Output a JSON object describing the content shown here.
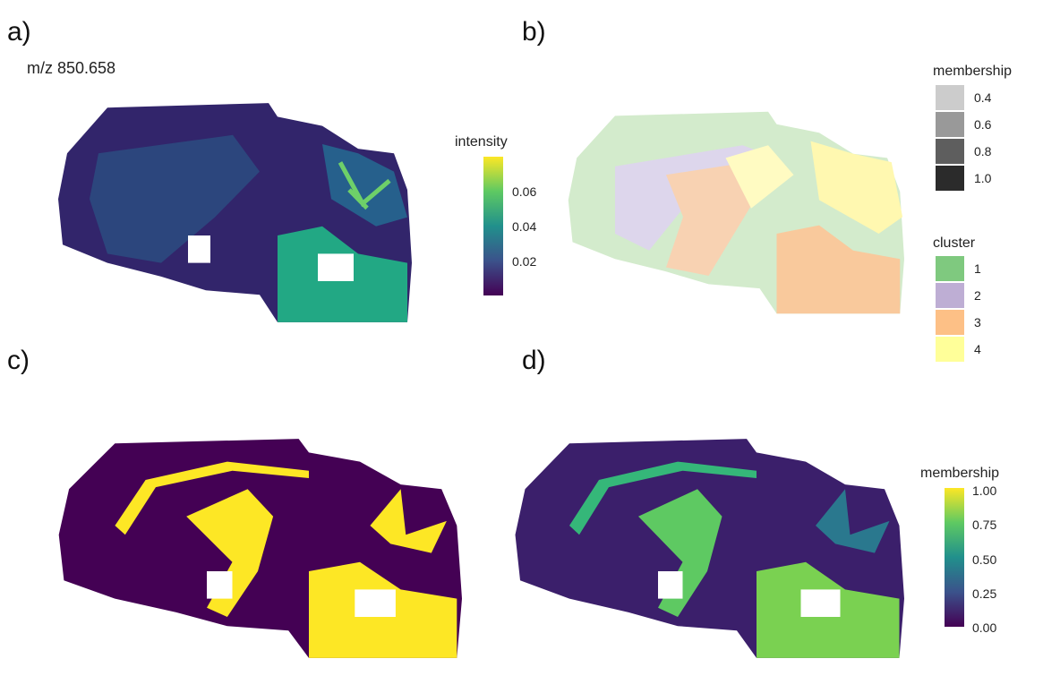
{
  "panels": [
    {
      "label": "a)",
      "title": "m/z 850.658",
      "legend": {
        "title": "intensity",
        "ticks": [
          "0.06",
          "0.04",
          "0.02"
        ]
      }
    },
    {
      "label": "b)",
      "legends": [
        {
          "title": "membership",
          "entries": [
            "0.4",
            "0.6",
            "0.8",
            "1.0"
          ]
        },
        {
          "title": "cluster",
          "entries": [
            "1",
            "2",
            "3",
            "4"
          ]
        }
      ]
    },
    {
      "label": "c)"
    },
    {
      "label": "d)",
      "legend": {
        "title": "membership",
        "ticks": [
          "1.00",
          "0.75",
          "0.50",
          "0.25",
          "0.00"
        ]
      }
    }
  ]
}
